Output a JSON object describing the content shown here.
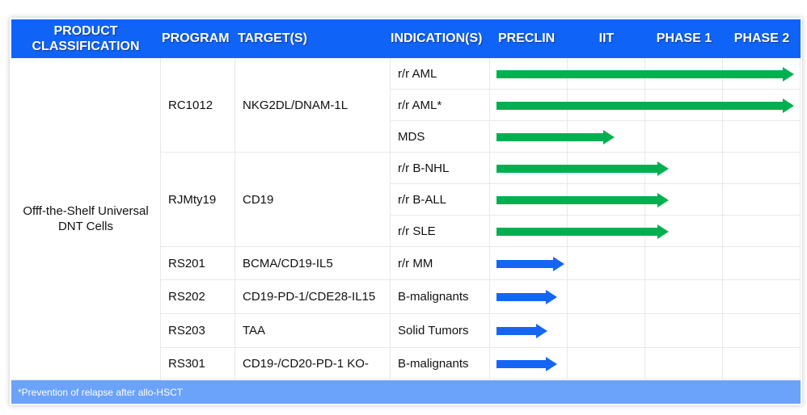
{
  "header": {
    "product": "PRODUCT CLASSIFICATION",
    "program": "PROGRAM",
    "target": "TARGET(S)",
    "indication": "INDICATION(S)",
    "phases": [
      "PRECLIN",
      "IIT",
      "PHASE 1",
      "PHASE 2"
    ]
  },
  "classification": "Offf-the-Shelf Universal DNT Cells",
  "programs": [
    {
      "name": "RC1012",
      "target": "NKG2DL/DNAM-1L",
      "indications": [
        {
          "name": "r/r AML",
          "progress": 0.98,
          "color": "#00b050"
        },
        {
          "name": "r/r AML*",
          "progress": 0.98,
          "color": "#00b050"
        },
        {
          "name": "MDS",
          "progress": 0.4,
          "color": "#00b050"
        }
      ]
    },
    {
      "name": "RJMty19",
      "target": "CD19",
      "indications": [
        {
          "name": "r/r B-NHL",
          "progress": 0.575,
          "color": "#00b050"
        },
        {
          "name": "r/r B-ALL",
          "progress": 0.575,
          "color": "#00b050"
        },
        {
          "name": "r/r SLE",
          "progress": 0.575,
          "color": "#00b050"
        }
      ]
    },
    {
      "name": "RS201",
      "target": "BCMA/CD19-IL5",
      "indications": [
        {
          "name": "r/r MM",
          "progress": 0.24,
          "color": "#1565f5"
        }
      ]
    },
    {
      "name": "RS202",
      "target": "CD19-PD-1/CDE28-IL15",
      "indications": [
        {
          "name": "B-malignants",
          "progress": 0.216,
          "color": "#1565f5"
        }
      ]
    },
    {
      "name": "RS203",
      "target": "TAA",
      "indications": [
        {
          "name": "Solid Tumors",
          "progress": 0.185,
          "color": "#1565f5"
        }
      ]
    },
    {
      "name": "RS301",
      "target": "CD19-/CD20-PD-1 KO-",
      "indications": [
        {
          "name": "B-malignants",
          "progress": 0.216,
          "color": "#1565f5"
        }
      ]
    }
  ],
  "footnote": "*Prevention of relapse after allo-HSCT"
}
